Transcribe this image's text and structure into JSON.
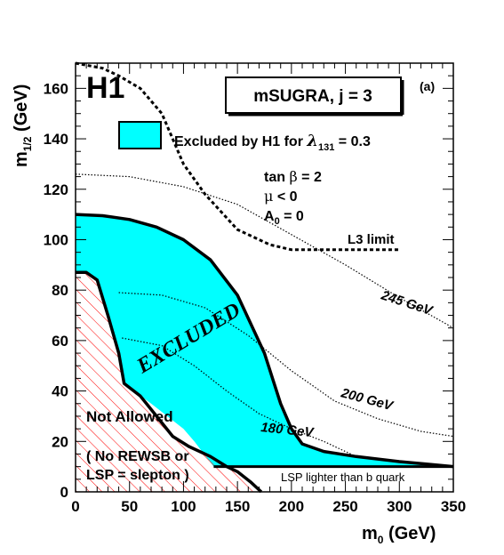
{
  "chart_data": {
    "type": "area",
    "title": "mSUGRA, j = 3",
    "panel_label": "(a)",
    "experiment_label": "H1",
    "xlabel": {
      "main": "m",
      "sub": "0",
      "unit": " (GeV)"
    },
    "ylabel": {
      "main": "m",
      "sub": "1/2",
      "unit": " (GeV)"
    },
    "xlim": [
      0,
      350
    ],
    "ylim": [
      0,
      170
    ],
    "xticks": [
      0,
      50,
      100,
      150,
      200,
      250,
      300,
      350
    ],
    "yticks": [
      0,
      20,
      40,
      60,
      80,
      100,
      120,
      140,
      160
    ],
    "grid": false,
    "legend": {
      "position": "top-center",
      "label_prefix": "Excluded by H1 for ",
      "symbol": "λ",
      "sub": "131",
      "label_suffix": " = 0.3",
      "color": "#00ffff"
    },
    "parameters": {
      "tanb_prefix": "tan ",
      "tanb_symbol": "β",
      "tanb_value": " = 2",
      "mu_symbol": "μ",
      "mu_value": " < 0",
      "a0_main": "A",
      "a0_sub": "0",
      "a0_value": " = 0"
    },
    "region_labels": {
      "excluded": "EXCLUDED",
      "not_allowed": "Not Allowed",
      "not_allowed_reason_1": "( No REWSB or",
      "not_allowed_reason_2": "LSP = slepton )",
      "lsp_lighter": "LSP lighter than b quark"
    },
    "excluded_region": {
      "color": "#00ffff",
      "boundary": [
        [
          0,
          110
        ],
        [
          25,
          109.5
        ],
        [
          50,
          108
        ],
        [
          75,
          105
        ],
        [
          100,
          100
        ],
        [
          125,
          92
        ],
        [
          150,
          78
        ],
        [
          175,
          55
        ],
        [
          190,
          35
        ],
        [
          200,
          25
        ],
        [
          210,
          19
        ],
        [
          230,
          16
        ],
        [
          260,
          14
        ],
        [
          300,
          12
        ],
        [
          325,
          11
        ],
        [
          350,
          10
        ],
        [
          200,
          10
        ],
        [
          128,
          10
        ],
        [
          110,
          20
        ],
        [
          100,
          25
        ],
        [
          70,
          35
        ],
        [
          45,
          43
        ],
        [
          40,
          55
        ],
        [
          30,
          70
        ],
        [
          20,
          84
        ],
        [
          10,
          87
        ],
        [
          0,
          87
        ]
      ]
    },
    "not_allowed_region": {
      "color": "#ff0000",
      "boundary": [
        [
          0,
          0
        ],
        [
          172,
          0
        ],
        [
          162,
          4
        ],
        [
          150,
          8
        ],
        [
          140,
          10
        ],
        [
          125,
          14
        ],
        [
          105,
          18
        ],
        [
          90,
          22
        ],
        [
          75,
          30
        ],
        [
          60,
          38
        ],
        [
          45,
          43
        ],
        [
          40,
          55
        ],
        [
          30,
          70
        ],
        [
          20,
          84
        ],
        [
          10,
          87
        ],
        [
          0,
          87
        ]
      ]
    },
    "lsp_line": [
      [
        128,
        10
      ],
      [
        350,
        10
      ]
    ],
    "series": [
      {
        "name": "L3 limit",
        "style": "dashed",
        "points": [
          [
            0,
            170
          ],
          [
            25,
            168
          ],
          [
            40,
            165
          ],
          [
            60,
            160
          ],
          [
            80,
            150
          ],
          [
            100,
            130
          ],
          [
            120,
            118
          ],
          [
            150,
            104
          ],
          [
            180,
            98
          ],
          [
            200,
            96
          ],
          [
            300,
            96
          ]
        ]
      },
      {
        "name": "245 GeV",
        "style": "dotted",
        "points": [
          [
            0,
            126
          ],
          [
            50,
            125
          ],
          [
            100,
            121
          ],
          [
            150,
            114
          ],
          [
            200,
            102
          ],
          [
            250,
            90
          ],
          [
            300,
            77
          ],
          [
            350,
            65
          ]
        ]
      },
      {
        "name": "200 GeV",
        "style": "dotted",
        "points": [
          [
            40,
            79
          ],
          [
            80,
            78
          ],
          [
            120,
            73
          ],
          [
            160,
            62
          ],
          [
            200,
            48
          ],
          [
            240,
            36
          ],
          [
            280,
            29
          ],
          [
            320,
            24
          ],
          [
            350,
            22
          ]
        ]
      },
      {
        "name": "180 GeV",
        "style": "dotted",
        "points": [
          [
            43,
            61
          ],
          [
            80,
            58
          ],
          [
            110,
            50
          ],
          [
            140,
            40
          ],
          [
            170,
            31
          ],
          [
            200,
            25
          ],
          [
            230,
            20
          ],
          [
            260,
            14
          ]
        ]
      }
    ]
  }
}
